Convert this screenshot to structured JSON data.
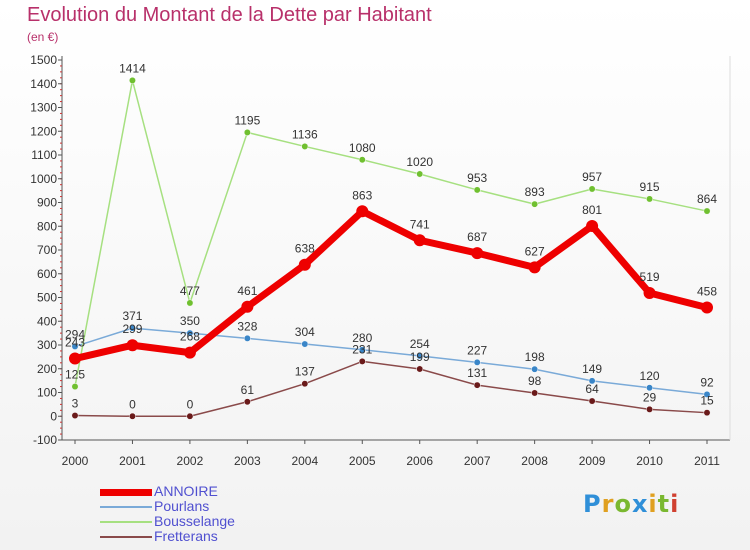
{
  "title": "Evolution du Montant de la Dette par Habitant",
  "unit": "(en €)",
  "logo": {
    "letters": [
      {
        "ch": "P",
        "color": "#2f8fd8"
      },
      {
        "ch": "r",
        "color": "#e0a020"
      },
      {
        "ch": "o",
        "color": "#7ab830"
      },
      {
        "ch": "x",
        "color": "#2f8fd8"
      },
      {
        "ch": "i",
        "color": "#e0a020"
      },
      {
        "ch": "t",
        "color": "#7ab830"
      },
      {
        "ch": "i",
        "color": "#d04030"
      }
    ]
  },
  "chart_data": {
    "type": "line",
    "title": "Evolution du Montant de la Dette par Habitant",
    "ylabel": "(en €)",
    "xlabel": "",
    "x": [
      "2000",
      "2001",
      "2002",
      "2003",
      "2004",
      "2005",
      "2006",
      "2007",
      "2008",
      "2009",
      "2010",
      "2011"
    ],
    "ylim": [
      -100,
      1500
    ],
    "yticks": [
      -100,
      0,
      100,
      200,
      300,
      400,
      500,
      600,
      700,
      800,
      900,
      1000,
      1100,
      1200,
      1300,
      1400,
      1500
    ],
    "grid": false,
    "legend_position": "bottom-left",
    "series": [
      {
        "name": "ANNOIRE",
        "color": "#ee0000",
        "width": 7,
        "marker": 6,
        "values": [
          243,
          299,
          268,
          461,
          638,
          863,
          741,
          687,
          627,
          801,
          519,
          458
        ]
      },
      {
        "name": "Pourlans",
        "color": "#7aaad8",
        "marker_color": "#3a86c8",
        "width": 1.5,
        "marker": 3.2,
        "values": [
          294,
          371,
          350,
          328,
          304,
          280,
          254,
          227,
          198,
          149,
          120,
          92
        ]
      },
      {
        "name": "Bousselange",
        "color": "#a6e080",
        "marker_color": "#70c030",
        "width": 1.5,
        "marker": 3.2,
        "values": [
          125,
          1414,
          477,
          1195,
          1136,
          1080,
          1020,
          953,
          893,
          957,
          915,
          864
        ]
      },
      {
        "name": "Fretterans",
        "color": "#8a4a4a",
        "marker_color": "#6a1a1a",
        "width": 1.5,
        "marker": 3.2,
        "values": [
          3,
          0,
          0,
          61,
          137,
          231,
          199,
          131,
          98,
          64,
          29,
          15
        ]
      }
    ]
  }
}
